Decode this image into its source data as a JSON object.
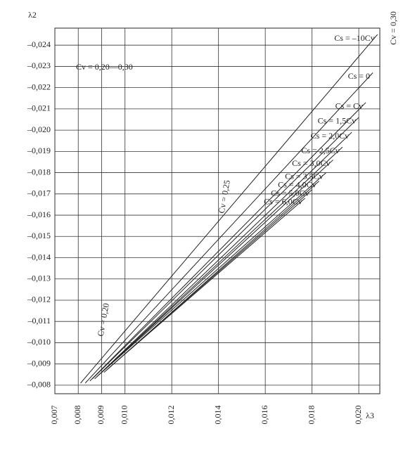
{
  "chart_data": {
    "type": "line",
    "y_label": "λ2",
    "x_label": "λ3",
    "annotations": [
      "Cv = 0,20—0,30",
      "Cv = 0,30",
      "Cv = 0,25",
      "Cv = 0,20"
    ],
    "xlim": [
      0.007,
      0.0209
    ],
    "ylim": [
      -0.0076,
      -0.0248
    ],
    "xticks": [
      {
        "value": 0.007,
        "label": "0,007"
      },
      {
        "value": 0.008,
        "label": "0,008"
      },
      {
        "value": 0.009,
        "label": "0,009"
      },
      {
        "value": 0.01,
        "label": "0,010"
      },
      {
        "value": 0.012,
        "label": "0,012"
      },
      {
        "value": 0.014,
        "label": "0,014"
      },
      {
        "value": 0.016,
        "label": "0,016"
      },
      {
        "value": 0.018,
        "label": "0,018"
      },
      {
        "value": 0.02,
        "label": "0,020"
      }
    ],
    "yticks": [
      {
        "value": -0.008,
        "label": "–0,008"
      },
      {
        "value": -0.009,
        "label": "–0,009"
      },
      {
        "value": -0.01,
        "label": "–0,010"
      },
      {
        "value": -0.011,
        "label": "–0,011"
      },
      {
        "value": -0.012,
        "label": "–0,012"
      },
      {
        "value": -0.013,
        "label": "–0,013"
      },
      {
        "value": -0.014,
        "label": "–0,014"
      },
      {
        "value": -0.015,
        "label": "–0,015"
      },
      {
        "value": -0.016,
        "label": "–0,016"
      },
      {
        "value": -0.017,
        "label": "–0,017"
      },
      {
        "value": -0.018,
        "label": "–0,018"
      },
      {
        "value": -0.019,
        "label": "–0,019"
      },
      {
        "value": -0.02,
        "label": "–0,020"
      },
      {
        "value": -0.021,
        "label": "–0,021"
      },
      {
        "value": -0.022,
        "label": "–0,022"
      },
      {
        "value": -0.023,
        "label": "–0,023"
      },
      {
        "value": -0.024,
        "label": "–0,024"
      }
    ],
    "grid": true,
    "color": "#222222",
    "series": [
      {
        "name": "Cs = –10Cv",
        "x": [
          0.0081,
          0.01445,
          0.0208
        ],
        "values": [
          -0.0081,
          -0.0163,
          -0.0245
        ]
      },
      {
        "name": "Cs = 0",
        "x": [
          0.0083,
          0.01445,
          0.0206
        ],
        "values": [
          -0.0081,
          -0.0154,
          -0.0227
        ]
      },
      {
        "name": "Cs = Cv",
        "x": [
          0.0085,
          0.0144,
          0.0203
        ],
        "values": [
          -0.0082,
          -0.01475,
          -0.0213
        ]
      },
      {
        "name": "Cs = 1,5Cv",
        "x": [
          0.0086,
          0.0143,
          0.02
        ],
        "values": [
          -0.0083,
          -0.01445,
          -0.0206
        ]
      },
      {
        "name": "Cs = 2,0Cv",
        "x": [
          0.0087,
          0.0142,
          0.0197
        ],
        "values": [
          -0.0083,
          -0.0141,
          -0.0199
        ]
      },
      {
        "name": "Cs = 2,5Cv",
        "x": [
          0.0088,
          0.01405,
          0.0193
        ],
        "values": [
          -0.0084,
          -0.0138,
          -0.0192
        ]
      },
      {
        "name": "Cs = 3,0Cv",
        "x": [
          0.0089,
          0.0139,
          0.0189
        ],
        "values": [
          -0.0085,
          -0.01355,
          -0.0186
        ]
      },
      {
        "name": "Cs = 3,5Cv",
        "x": [
          0.009,
          0.0138,
          0.0186
        ],
        "values": [
          -0.0086,
          -0.0133,
          -0.018
        ]
      },
      {
        "name": "Cs = 4,0Cv",
        "x": [
          0.0091,
          0.0137,
          0.0183
        ],
        "values": [
          -0.0086,
          -0.0131,
          -0.0176
        ]
      },
      {
        "name": "Cs = 5,0Cv",
        "x": [
          0.0092,
          0.0136,
          0.018
        ],
        "values": [
          -0.0087,
          -0.01295,
          -0.0172
        ]
      },
      {
        "name": "Cs = 6,0Cv",
        "x": [
          0.0093,
          0.0135,
          0.0177
        ],
        "values": [
          -0.0088,
          -0.0128,
          -0.0168
        ]
      }
    ]
  }
}
